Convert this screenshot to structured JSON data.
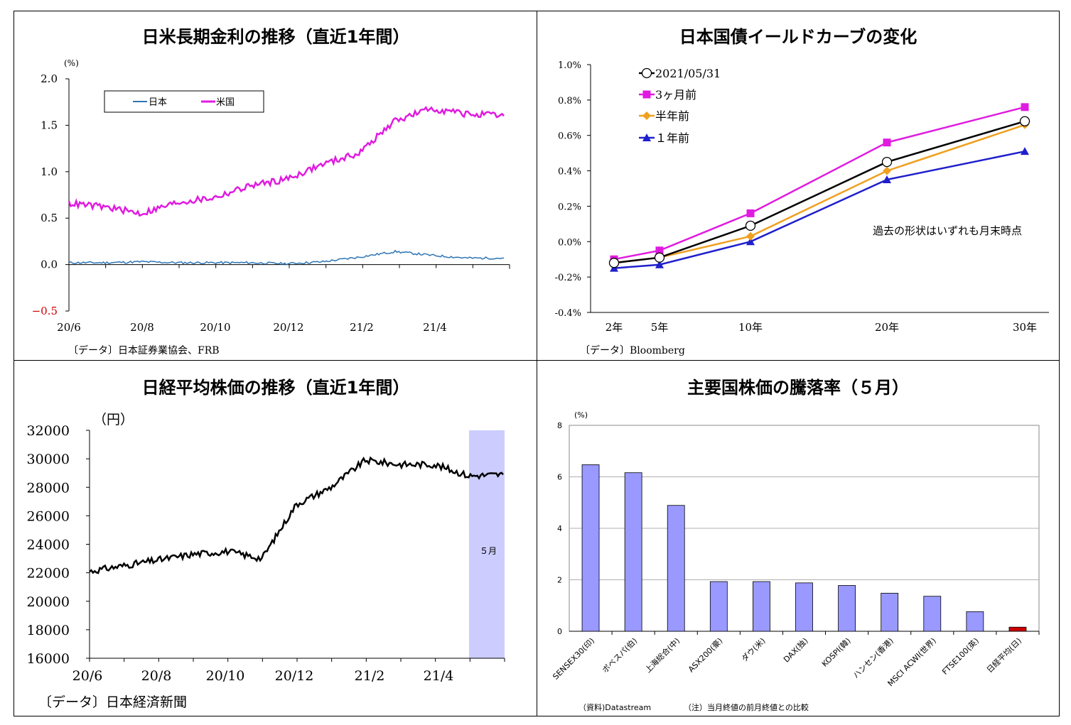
{
  "panels": {
    "rates": {
      "title": "日米長期金利の推移（直近1年間）",
      "source": "〔データ〕日本証券業協会、FRB",
      "chart_data": {
        "type": "line",
        "title": "日米長期金利の推移（直近1年間）",
        "unit": "(%)",
        "ylim": [
          -0.5,
          2.0
        ],
        "yticks": [
          "2.0",
          "1.5",
          "1.0",
          "0.5",
          "0.0",
          "−0.5"
        ],
        "xticks": [
          "20/6",
          "20/8",
          "20/10",
          "20/12",
          "21/2",
          "21/4"
        ],
        "x": [
          "20/6",
          "20/7",
          "20/8",
          "20/9",
          "20/10",
          "20/11",
          "20/12",
          "21/1",
          "21/2",
          "21/3",
          "21/4",
          "21/5",
          "21/5末"
        ],
        "series": [
          {
            "name": "日本",
            "color": "#2e75b6",
            "values": [
              0.02,
              0.02,
              0.03,
              0.02,
              0.02,
              0.02,
              0.01,
              0.03,
              0.08,
              0.14,
              0.1,
              0.07,
              0.07
            ]
          },
          {
            "name": "米国",
            "color": "#e01be0",
            "values": [
              0.66,
              0.62,
              0.55,
              0.67,
              0.72,
              0.85,
              0.92,
              1.08,
              1.2,
              1.55,
              1.68,
              1.62,
              1.6
            ]
          }
        ]
      }
    },
    "yield": {
      "title": "日本国債イールドカーブの変化",
      "source": "〔データ〕Bloomberg",
      "note": "過去の形状はいずれも月末時点",
      "chart_data": {
        "type": "line",
        "title": "日本国債イールドカーブの変化",
        "categories": [
          "2年",
          "5年",
          "10年",
          "20年",
          "30年"
        ],
        "ylim": [
          -0.4,
          1.0
        ],
        "yticks": [
          "1.0%",
          "0.8%",
          "0.6%",
          "0.4%",
          "0.2%",
          "0.0%",
          "-0.2%",
          "-0.4%"
        ],
        "series": [
          {
            "name": "2021/05/31",
            "color": "#000000",
            "marker": "circle",
            "values": [
              -0.12,
              -0.09,
              0.09,
              0.45,
              0.68
            ]
          },
          {
            "name": "3ヶ月前",
            "color": "#e01be0",
            "marker": "square",
            "values": [
              -0.1,
              -0.05,
              0.16,
              0.56,
              0.76
            ]
          },
          {
            "name": "半年前",
            "color": "#f0a020",
            "marker": "diamond",
            "values": [
              -0.12,
              -0.09,
              0.03,
              0.4,
              0.66
            ]
          },
          {
            "name": "１年前",
            "color": "#1f1fcc",
            "marker": "triangle",
            "values": [
              -0.15,
              -0.13,
              0.0,
              0.35,
              0.51
            ]
          }
        ]
      }
    },
    "nikkei": {
      "title": "日経平均株価の推移（直近1年間）",
      "source": "〔データ〕日本経済新聞",
      "highlight_label": "５月",
      "chart_data": {
        "type": "line",
        "title": "日経平均株価の推移（直近1年間）",
        "unit": "（円）",
        "ylim": [
          16000,
          32000
        ],
        "yticks": [
          "32000",
          "30000",
          "28000",
          "26000",
          "24000",
          "22000",
          "20000",
          "18000",
          "16000"
        ],
        "xticks": [
          "20/6",
          "20/8",
          "20/10",
          "20/12",
          "21/2",
          "21/4"
        ],
        "x": [
          "20/6",
          "20/7",
          "20/8",
          "20/9",
          "20/10",
          "20/11",
          "20/12",
          "21/1",
          "21/2",
          "21/3",
          "21/4",
          "21/5",
          "21/5末"
        ],
        "series": [
          {
            "name": "日経平均",
            "color": "#000000",
            "values": [
              22100,
              22500,
              22900,
              23300,
              23500,
              23000,
              26800,
              28000,
              29900,
              29600,
              29600,
              28800,
              28900
            ]
          }
        ]
      }
    },
    "stocks": {
      "title": "主要国株価の騰落率（５月）",
      "source": "（資料)Datastream",
      "note": "（注）当月終値の前月終値との比較",
      "chart_data": {
        "type": "bar",
        "title": "主要国株価の騰落率（５月）",
        "unit": "(%)",
        "ylim": [
          0,
          8
        ],
        "yticks": [
          "8",
          "6",
          "4",
          "2",
          "0"
        ],
        "categories": [
          "SENSEX30(印)",
          "ボベスパ(伯)",
          "上海総合(中)",
          "ASX200(豪)",
          "ダウ(米)",
          "DAX(独)",
          "KOSPI(韓)",
          "ハンセン(香港)",
          "MSCI ACWI(世界)",
          "FTSE100(英)",
          "日経平均(日)"
        ],
        "values": [
          6.47,
          6.16,
          4.89,
          1.93,
          1.93,
          1.88,
          1.78,
          1.48,
          1.36,
          0.76,
          0.16
        ],
        "colors": {
          "default": "#9999ff",
          "highlight": "#cc0000"
        },
        "highlight_index": 10
      }
    }
  }
}
